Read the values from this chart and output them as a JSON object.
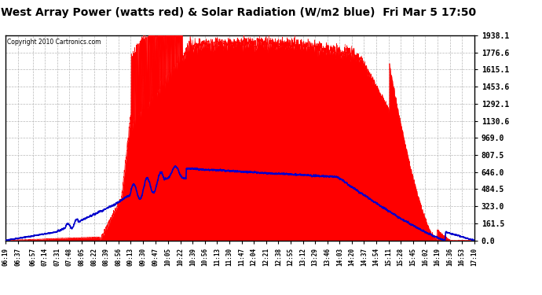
{
  "title": "West Array Power (watts red) & Solar Radiation (W/m2 blue)  Fri Mar 5 17:50",
  "copyright": "Copyright 2010 Cartronics.com",
  "yticks": [
    0.0,
    161.5,
    323.0,
    484.5,
    646.0,
    807.5,
    969.0,
    1130.6,
    1292.1,
    1453.6,
    1615.1,
    1776.6,
    1938.1
  ],
  "ymax": 1938.1,
  "ymin": 0.0,
  "background_color": "#ffffff",
  "plot_bg_color": "#ffffff",
  "grid_color": "#b0b0b0",
  "red_color": "#ff0000",
  "blue_color": "#0000cc",
  "title_fontsize": 10,
  "xtick_labels": [
    "06:19",
    "06:37",
    "06:57",
    "07:14",
    "07:31",
    "07:48",
    "08:05",
    "08:22",
    "08:39",
    "08:56",
    "09:13",
    "09:30",
    "09:47",
    "10:05",
    "10:22",
    "10:39",
    "10:56",
    "11:13",
    "11:30",
    "11:47",
    "12:04",
    "12:21",
    "12:38",
    "12:55",
    "13:12",
    "13:29",
    "13:46",
    "14:03",
    "14:20",
    "14:37",
    "14:54",
    "15:11",
    "15:28",
    "15:45",
    "16:02",
    "16:19",
    "16:36",
    "16:53",
    "17:10"
  ]
}
